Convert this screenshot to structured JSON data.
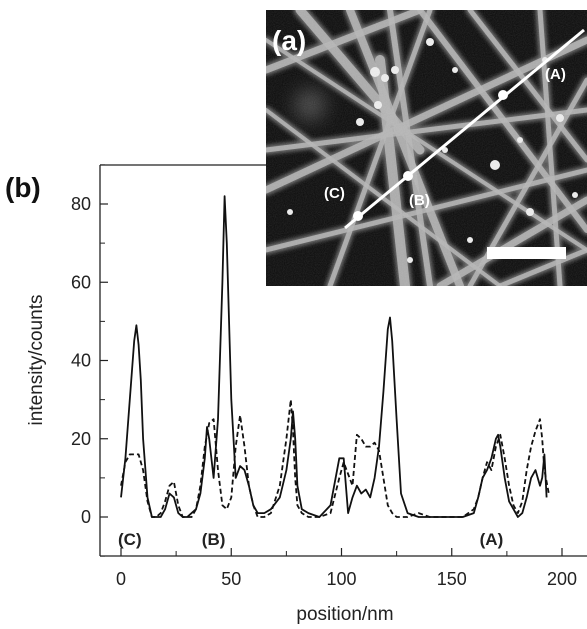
{
  "panel_b_label": "(b)",
  "panel_a_label": "(a)",
  "chart_data": {
    "type": "line",
    "xlabel": "position/nm",
    "ylabel": "intensity/counts",
    "xlim": [
      -5,
      200
    ],
    "ylim": [
      -10,
      90
    ],
    "xticks": [
      0,
      50,
      100,
      150,
      200
    ],
    "yticks": [
      0,
      20,
      40,
      60,
      80
    ],
    "grid": false,
    "series": [
      {
        "style": "solid",
        "x": [
          0,
          2,
          4,
          6,
          7,
          8,
          9,
          10,
          12,
          14,
          16,
          18,
          20,
          22,
          24,
          26,
          28,
          30,
          32,
          34,
          36,
          38,
          39,
          40,
          42,
          44,
          46,
          47,
          48,
          50,
          52,
          54,
          56,
          58,
          60,
          62,
          65,
          68,
          72,
          75,
          77,
          78,
          79,
          80,
          82,
          85,
          90,
          95,
          99,
          101,
          103,
          105,
          107,
          109,
          111,
          113,
          115,
          117,
          119,
          121,
          122,
          123,
          125,
          127,
          130,
          135,
          140,
          145,
          150,
          155,
          160,
          162,
          164,
          166,
          168,
          170,
          171,
          172,
          174,
          176,
          178,
          180,
          182,
          184,
          186,
          188,
          190,
          191,
          192,
          193
        ],
        "y": [
          5,
          15,
          30,
          45,
          49,
          44,
          35,
          20,
          5,
          0,
          0,
          0,
          2,
          6,
          5,
          1,
          0,
          0,
          1,
          2,
          6,
          15,
          23,
          20,
          10,
          25,
          60,
          82,
          70,
          30,
          10,
          13,
          12,
          8,
          3,
          1,
          1,
          2,
          5,
          12,
          20,
          27,
          20,
          8,
          2,
          1,
          0,
          3,
          15,
          15,
          1,
          5,
          8,
          6,
          7,
          5,
          10,
          18,
          32,
          48,
          51,
          45,
          25,
          6,
          1,
          0,
          0,
          0,
          0,
          0,
          1,
          5,
          10,
          12,
          15,
          20,
          21,
          18,
          10,
          4,
          2,
          0,
          1,
          5,
          10,
          12,
          8,
          10,
          16,
          5
        ]
      },
      {
        "style": "dashed",
        "x": [
          0,
          2,
          4,
          6,
          8,
          10,
          12,
          14,
          16,
          18,
          20,
          22,
          24,
          26,
          28,
          30,
          32,
          34,
          36,
          38,
          40,
          42,
          44,
          46,
          48,
          50,
          52,
          54,
          56,
          58,
          60,
          62,
          65,
          68,
          72,
          75,
          77,
          78,
          79,
          80,
          82,
          85,
          90,
          95,
          99,
          101,
          103,
          105,
          107,
          109,
          111,
          113,
          115,
          117,
          119,
          121,
          123,
          125,
          130,
          135,
          140,
          145,
          150,
          155,
          160,
          162,
          164,
          166,
          168,
          170,
          172,
          174,
          176,
          178,
          180,
          182,
          184,
          186,
          188,
          190,
          191,
          192,
          194
        ],
        "y": [
          8,
          14,
          16,
          16,
          16,
          12,
          4,
          0,
          0,
          1,
          4,
          8,
          9,
          3,
          0,
          0,
          0,
          2,
          8,
          18,
          24,
          25,
          12,
          3,
          2,
          5,
          18,
          26,
          18,
          8,
          3,
          0,
          0,
          1,
          8,
          20,
          30,
          22,
          10,
          3,
          1,
          0,
          0,
          1,
          10,
          14,
          11,
          8,
          21,
          20,
          18,
          18,
          19,
          17,
          10,
          3,
          1,
          0,
          0,
          1,
          0,
          0,
          0,
          0,
          2,
          5,
          10,
          14,
          12,
          18,
          21,
          15,
          8,
          3,
          1,
          4,
          12,
          18,
          22,
          25,
          20,
          12,
          6
        ]
      }
    ],
    "annotations": [
      {
        "text": "(C)",
        "x": 4
      },
      {
        "text": "(B)",
        "x": 42
      },
      {
        "text": "(A)",
        "x": 168
      }
    ]
  },
  "inset": {
    "markers": [
      {
        "text": "(A)"
      },
      {
        "text": "(B)"
      },
      {
        "text": "(C)"
      }
    ]
  },
  "colors": {
    "line": "#111111",
    "inset_background": "#0a0a0a",
    "fiber": "#b8b8b8",
    "profile_line": "#ffffff"
  }
}
